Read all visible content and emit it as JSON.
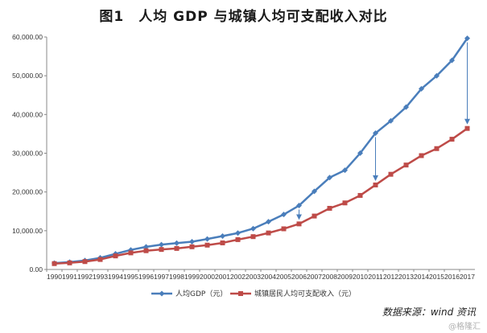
{
  "title": "图1　人均 GDP 与城镇人均可支配收入对比",
  "source_note": "数据来源：wind 资讯",
  "watermark": "@格隆汇",
  "chart_data": {
    "type": "line",
    "categories": [
      "1990",
      "1991",
      "1992",
      "1993",
      "1994",
      "1995",
      "1996",
      "1997",
      "1998",
      "1999",
      "2000",
      "2001",
      "2002",
      "2003",
      "2004",
      "2005",
      "2006",
      "2007",
      "2008",
      "2009",
      "2010",
      "2011",
      "2012",
      "2013",
      "2014",
      "2015",
      "2016",
      "2017"
    ],
    "series": [
      {
        "name": "人均GDP（元）",
        "color": "#4a7ebb",
        "marker": "diamond",
        "values": [
          1644,
          1893,
          2311,
          2998,
          4044,
          5046,
          5846,
          6420,
          6796,
          7159,
          7858,
          8622,
          9398,
          10542,
          12336,
          14185,
          16500,
          20169,
          23708,
          25608,
          30015,
          35181,
          38354,
          41907,
          46629,
          49992,
          53980,
          59660
        ]
      },
      {
        "name": "城镇居民人均可支配收入（元）",
        "color": "#be4b48",
        "marker": "square",
        "values": [
          1510,
          1700,
          2027,
          2577,
          3496,
          4283,
          4839,
          5160,
          5425,
          5854,
          6280,
          6860,
          7703,
          8472,
          9422,
          10493,
          11759,
          13786,
          15781,
          17175,
          19109,
          21810,
          24565,
          26955,
          29381,
          31195,
          33616,
          36396
        ]
      }
    ],
    "y_ticks": [
      "0.00",
      "10,000.00",
      "20,000.00",
      "30,000.00",
      "40,000.00",
      "50,000.00",
      "60,000.00"
    ],
    "ylim": [
      0,
      60000
    ],
    "grid": false,
    "legend_position": "bottom",
    "annotation_arrows": [
      "2006",
      "2011",
      "2017"
    ]
  }
}
